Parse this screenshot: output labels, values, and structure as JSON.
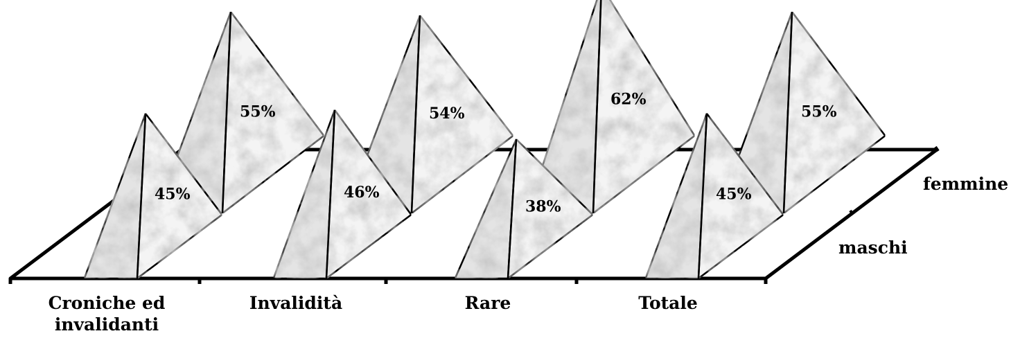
{
  "chart_data": {
    "type": "bar",
    "style": "3d-pyramid",
    "categories": [
      "Croniche ed\ninvalidanti",
      "Invalidità",
      "Rare",
      "Totale"
    ],
    "series": [
      {
        "name": "maschi",
        "values": [
          45,
          46,
          38,
          45
        ],
        "labels": [
          "45%",
          "46%",
          "38%",
          "45%"
        ]
      },
      {
        "name": "femmine",
        "values": [
          55,
          54,
          62,
          55
        ],
        "labels": [
          "55%",
          "54%",
          "62%",
          "55%"
        ]
      }
    ],
    "unit": "%",
    "title": "",
    "xlabel": "",
    "ylabel": "",
    "ylim": [
      0,
      70
    ],
    "grid": false,
    "colors": {
      "edge": "#000000",
      "face_light": "#f4f4f4",
      "face_dark": "#b9b9b9",
      "face_vein": "#8a8a8a"
    }
  }
}
